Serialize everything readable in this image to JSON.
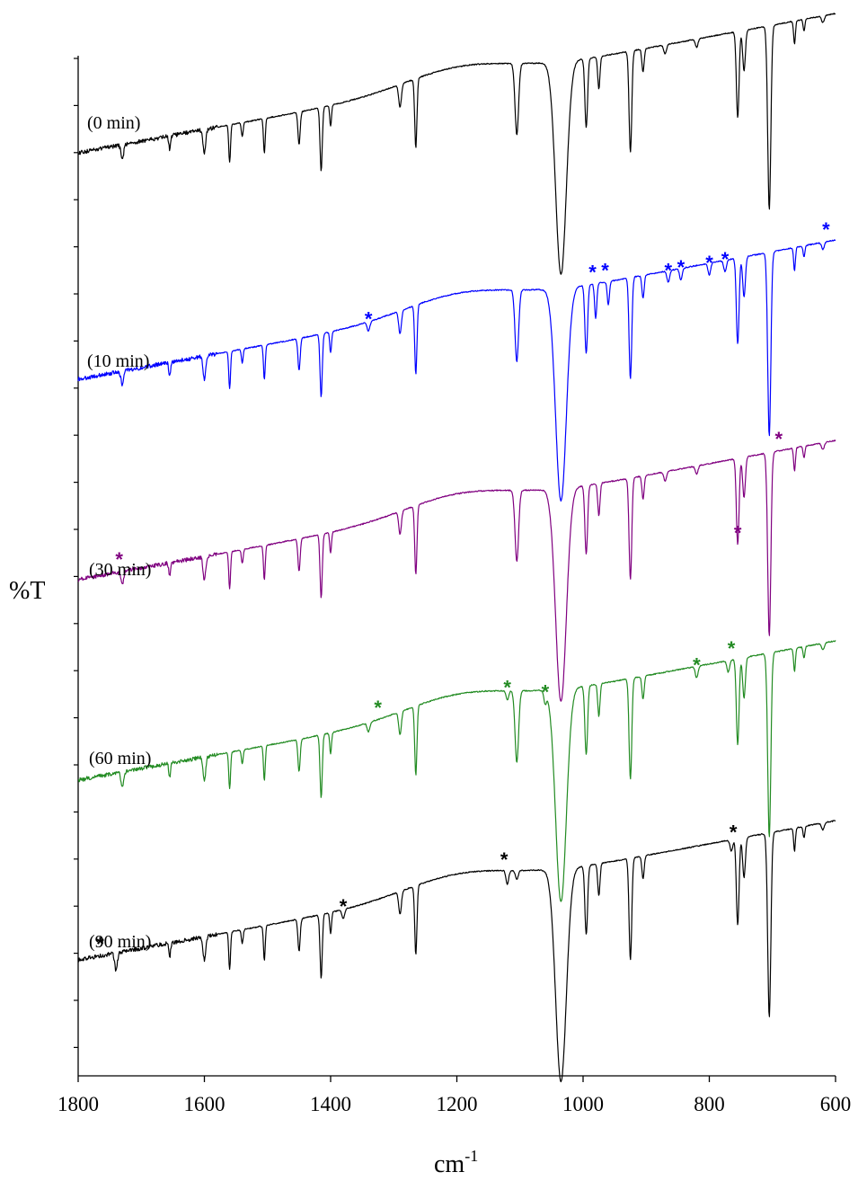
{
  "chart_data": {
    "type": "line",
    "title": "",
    "xlabel": "cm",
    "xlabel_superscript": "-1",
    "ylabel": "%T",
    "xlim": [
      1800,
      600
    ],
    "x_reversed": true,
    "x_ticks": [
      1800,
      1600,
      1400,
      1200,
      1000,
      800,
      600
    ],
    "y_ticks_labeled": false,
    "grid": false,
    "legend": "none",
    "marker_symbol": "*",
    "series": [
      {
        "name": "(0 min)",
        "color": "#000000",
        "bands": [
          [
            1730,
            0.12,
            3
          ],
          [
            1655,
            0.12,
            2
          ],
          [
            1600,
            0.2,
            3
          ],
          [
            1560,
            0.32,
            2
          ],
          [
            1540,
            0.12,
            2
          ],
          [
            1505,
            0.3,
            2
          ],
          [
            1450,
            0.28,
            2.5
          ],
          [
            1415,
            0.55,
            2.5
          ],
          [
            1400,
            0.18,
            2
          ],
          [
            1290,
            0.2,
            3
          ],
          [
            1265,
            0.6,
            2.5
          ],
          [
            1105,
            0.62,
            4
          ],
          [
            1035,
            1.85,
            12
          ],
          [
            995,
            0.6,
            3
          ],
          [
            975,
            0.28,
            2.5
          ],
          [
            925,
            0.88,
            3
          ],
          [
            905,
            0.2,
            2.5
          ],
          [
            870,
            0.08,
            3
          ],
          [
            820,
            0.07,
            3
          ],
          [
            755,
            0.75,
            3
          ],
          [
            745,
            0.35,
            3
          ],
          [
            705,
            1.6,
            3.5
          ],
          [
            665,
            0.2,
            2
          ],
          [
            650,
            0.1,
            2
          ],
          [
            620,
            0.06,
            3
          ]
        ],
        "markers": []
      },
      {
        "name": "(10 min)",
        "color": "#0000ff",
        "bands": [
          [
            1730,
            0.12,
            3
          ],
          [
            1655,
            0.12,
            2
          ],
          [
            1600,
            0.2,
            3
          ],
          [
            1560,
            0.32,
            2
          ],
          [
            1540,
            0.12,
            2
          ],
          [
            1505,
            0.3,
            2
          ],
          [
            1450,
            0.28,
            2.5
          ],
          [
            1415,
            0.55,
            2.5
          ],
          [
            1400,
            0.18,
            2
          ],
          [
            1340,
            0.08,
            3
          ],
          [
            1290,
            0.2,
            3
          ],
          [
            1265,
            0.6,
            2.5
          ],
          [
            1105,
            0.62,
            4
          ],
          [
            1035,
            1.85,
            12
          ],
          [
            995,
            0.6,
            3
          ],
          [
            980,
            0.3,
            2.5
          ],
          [
            960,
            0.2,
            2.5
          ],
          [
            925,
            0.88,
            3
          ],
          [
            905,
            0.2,
            2.5
          ],
          [
            865,
            0.1,
            3
          ],
          [
            845,
            0.1,
            3
          ],
          [
            800,
            0.1,
            3
          ],
          [
            775,
            0.1,
            3
          ],
          [
            755,
            0.75,
            3
          ],
          [
            745,
            0.35,
            3
          ],
          [
            705,
            1.6,
            3.5
          ],
          [
            665,
            0.2,
            2
          ],
          [
            650,
            0.1,
            2
          ],
          [
            620,
            0.06,
            3
          ]
        ],
        "markers": [
          1340,
          985,
          965,
          865,
          845,
          800,
          775,
          615
        ]
      },
      {
        "name": "(30 min)",
        "color": "#800080",
        "bands": [
          [
            1730,
            0.12,
            3
          ],
          [
            1655,
            0.12,
            2
          ],
          [
            1600,
            0.2,
            3
          ],
          [
            1560,
            0.32,
            2
          ],
          [
            1540,
            0.12,
            2
          ],
          [
            1505,
            0.3,
            2
          ],
          [
            1450,
            0.28,
            2.5
          ],
          [
            1415,
            0.55,
            2.5
          ],
          [
            1400,
            0.18,
            2
          ],
          [
            1290,
            0.2,
            3
          ],
          [
            1265,
            0.6,
            2.5
          ],
          [
            1105,
            0.62,
            4
          ],
          [
            1035,
            1.85,
            12
          ],
          [
            995,
            0.6,
            3
          ],
          [
            975,
            0.28,
            2.5
          ],
          [
            925,
            0.88,
            3
          ],
          [
            905,
            0.2,
            2.5
          ],
          [
            870,
            0.08,
            3
          ],
          [
            820,
            0.07,
            3
          ],
          [
            755,
            0.75,
            3
          ],
          [
            745,
            0.35,
            3
          ],
          [
            705,
            1.6,
            3.5
          ],
          [
            665,
            0.2,
            2
          ],
          [
            650,
            0.1,
            2
          ],
          [
            620,
            0.06,
            3
          ]
        ],
        "markers": [
          1735,
          755,
          690
        ]
      },
      {
        "name": "(60 min)",
        "color": "#228b22",
        "bands": [
          [
            1730,
            0.12,
            3
          ],
          [
            1655,
            0.12,
            2
          ],
          [
            1600,
            0.2,
            3
          ],
          [
            1560,
            0.32,
            2
          ],
          [
            1540,
            0.12,
            2
          ],
          [
            1505,
            0.3,
            2
          ],
          [
            1450,
            0.28,
            2.5
          ],
          [
            1415,
            0.55,
            2.5
          ],
          [
            1400,
            0.18,
            2
          ],
          [
            1340,
            0.08,
            3
          ],
          [
            1290,
            0.2,
            3
          ],
          [
            1265,
            0.6,
            2.5
          ],
          [
            1120,
            0.08,
            3
          ],
          [
            1105,
            0.62,
            4
          ],
          [
            1060,
            0.1,
            3
          ],
          [
            1035,
            1.85,
            12
          ],
          [
            995,
            0.6,
            3
          ],
          [
            975,
            0.28,
            2.5
          ],
          [
            925,
            0.88,
            3
          ],
          [
            905,
            0.2,
            2.5
          ],
          [
            820,
            0.1,
            3
          ],
          [
            770,
            0.1,
            3
          ],
          [
            755,
            0.75,
            3
          ],
          [
            745,
            0.35,
            3
          ],
          [
            705,
            1.6,
            3.5
          ],
          [
            665,
            0.2,
            2
          ],
          [
            650,
            0.1,
            2
          ],
          [
            620,
            0.06,
            3
          ]
        ],
        "markers": [
          1325,
          1120,
          1060,
          820,
          765
        ]
      },
      {
        "name": "(90 min)",
        "color": "#000000",
        "bands": [
          [
            1740,
            0.15,
            3
          ],
          [
            1655,
            0.12,
            2
          ],
          [
            1600,
            0.2,
            3
          ],
          [
            1560,
            0.32,
            2
          ],
          [
            1540,
            0.12,
            2
          ],
          [
            1505,
            0.3,
            2
          ],
          [
            1450,
            0.28,
            2.5
          ],
          [
            1415,
            0.55,
            2.5
          ],
          [
            1400,
            0.18,
            2
          ],
          [
            1380,
            0.08,
            3
          ],
          [
            1290,
            0.2,
            3
          ],
          [
            1265,
            0.6,
            2.5
          ],
          [
            1120,
            0.12,
            3
          ],
          [
            1105,
            0.08,
            3
          ],
          [
            1035,
            1.85,
            12
          ],
          [
            995,
            0.6,
            3
          ],
          [
            975,
            0.28,
            2.5
          ],
          [
            925,
            0.88,
            3
          ],
          [
            905,
            0.2,
            2.5
          ],
          [
            765,
            0.1,
            3
          ],
          [
            755,
            0.75,
            3
          ],
          [
            745,
            0.35,
            3
          ],
          [
            705,
            1.6,
            3.5
          ],
          [
            665,
            0.2,
            2
          ],
          [
            650,
            0.1,
            2
          ],
          [
            620,
            0.06,
            3
          ]
        ],
        "markers": [
          1765,
          1380,
          1125,
          762
        ]
      }
    ]
  }
}
